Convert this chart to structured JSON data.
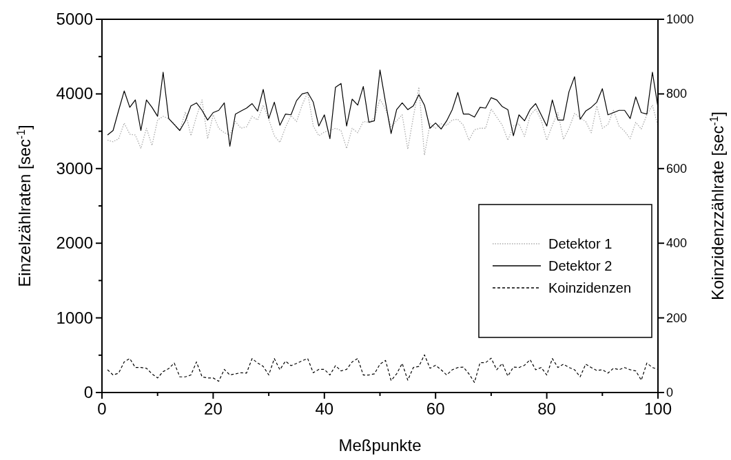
{
  "chart_data": {
    "type": "line",
    "xlabel": "Meßpunkte",
    "ylabel": "Einzelzählraten [sec$^{-1}$]",
    "y2label": "Koinzidenzzählrate [sec$^{-1}$]",
    "x": [
      1,
      2,
      3,
      4,
      5,
      6,
      7,
      8,
      9,
      10,
      11,
      12,
      13,
      14,
      15,
      16,
      17,
      18,
      19,
      20,
      21,
      22,
      23,
      24,
      25,
      26,
      27,
      28,
      29,
      30,
      31,
      32,
      33,
      34,
      35,
      36,
      37,
      38,
      39,
      40,
      41,
      42,
      43,
      44,
      45,
      46,
      47,
      48,
      49,
      50,
      51,
      52,
      53,
      54,
      55,
      56,
      57,
      58,
      59,
      60,
      61,
      62,
      63,
      64,
      65,
      66,
      67,
      68,
      69,
      70,
      71,
      72,
      73,
      74,
      75,
      76,
      77,
      78,
      79,
      80,
      81,
      82,
      83,
      84,
      85,
      86,
      87,
      88,
      89,
      90,
      91,
      92,
      93,
      94,
      95,
      96,
      97,
      98,
      99,
      100
    ],
    "xlim": [
      0,
      100
    ],
    "xticks": [
      0,
      {
        "value": 10,
        "label": null
      },
      20,
      {
        "value": 30,
        "label": null
      },
      40,
      {
        "value": 50,
        "label": null
      },
      60,
      {
        "value": 70,
        "label": null
      },
      80,
      {
        "value": 90,
        "label": null
      },
      100
    ],
    "ylim": [
      0,
      5000
    ],
    "yticks": [
      0,
      {
        "value": 500,
        "label": null
      },
      1000,
      {
        "value": 1500,
        "label": null
      },
      2000,
      {
        "value": 2500,
        "label": null
      },
      3000,
      {
        "value": 3500,
        "label": null
      },
      4000,
      {
        "value": 4500,
        "label": null
      },
      5000
    ],
    "y2lim": [
      0,
      1000
    ],
    "y2ticks": [
      0,
      200,
      400,
      600,
      800,
      1000
    ],
    "grid": false,
    "legend": "right",
    "series": [
      {
        "name": "Detektor 1",
        "color": "#aaaaaa",
        "line_style": "dotted",
        "values": [
          3380,
          3360,
          3400,
          3610,
          3460,
          3450,
          3270,
          3540,
          3310,
          3650,
          3700,
          3670,
          3600,
          3510,
          3760,
          3440,
          3700,
          3920,
          3400,
          3720,
          3540,
          3480,
          3450,
          3630,
          3540,
          3560,
          3700,
          3650,
          3850,
          3660,
          3440,
          3350,
          3550,
          3710,
          3630,
          3850,
          4020,
          3570,
          3440,
          3490,
          3510,
          3540,
          3510,
          3270,
          3540,
          3480,
          3630,
          3620,
          3680,
          3930,
          3800,
          3560,
          3640,
          3720,
          3260,
          3690,
          4090,
          3180,
          3600,
          3540,
          3600,
          3580,
          3650,
          3660,
          3580,
          3380,
          3520,
          3540,
          3540,
          3800,
          3690,
          3580,
          3380,
          3570,
          3600,
          3430,
          3710,
          3800,
          3650,
          3380,
          3580,
          3750,
          3390,
          3540,
          3740,
          3680,
          3630,
          3480,
          3840,
          3540,
          3590,
          3780,
          3570,
          3500,
          3400,
          3620,
          3530,
          3720,
          3850,
          3570
        ]
      },
      {
        "name": "Detektor 2",
        "color": "#000000",
        "line_style": "solid",
        "values": [
          3450,
          3510,
          3780,
          4040,
          3820,
          3920,
          3510,
          3920,
          3820,
          3700,
          4290,
          3670,
          3590,
          3510,
          3640,
          3840,
          3880,
          3780,
          3650,
          3750,
          3780,
          3880,
          3300,
          3730,
          3770,
          3810,
          3870,
          3770,
          4060,
          3670,
          3890,
          3580,
          3730,
          3720,
          3910,
          4000,
          4020,
          3890,
          3570,
          3720,
          3400,
          4090,
          4140,
          3570,
          3930,
          3850,
          4100,
          3620,
          3640,
          4320,
          3890,
          3470,
          3790,
          3880,
          3790,
          3840,
          3990,
          3850,
          3540,
          3610,
          3530,
          3640,
          3790,
          4020,
          3730,
          3730,
          3690,
          3820,
          3810,
          3950,
          3920,
          3830,
          3790,
          3440,
          3720,
          3640,
          3790,
          3870,
          3720,
          3570,
          3920,
          3650,
          3650,
          4030,
          4230,
          3660,
          3770,
          3820,
          3890,
          4070,
          3720,
          3750,
          3780,
          3780,
          3670,
          3960,
          3750,
          3730,
          4290,
          3820
        ]
      },
      {
        "name": "Koinzidenzen",
        "color": "#000000",
        "line_style": "dashed",
        "axis": "y2",
        "values": [
          61,
          47,
          52,
          82,
          91,
          67,
          67,
          65,
          50,
          39,
          56,
          64,
          79,
          42,
          42,
          47,
          82,
          42,
          39,
          39,
          30,
          62,
          47,
          50,
          53,
          52,
          91,
          79,
          70,
          47,
          91,
          61,
          84,
          72,
          78,
          85,
          91,
          53,
          62,
          62,
          47,
          72,
          58,
          62,
          82,
          91,
          47,
          47,
          50,
          76,
          86,
          32,
          50,
          78,
          33,
          67,
          70,
          101,
          65,
          73,
          61,
          47,
          61,
          67,
          68,
          50,
          27,
          80,
          80,
          92,
          61,
          78,
          44,
          68,
          67,
          73,
          88,
          61,
          67,
          47,
          91,
          67,
          76,
          67,
          61,
          42,
          76,
          67,
          59,
          61,
          52,
          65,
          61,
          67,
          61,
          58,
          33,
          79,
          67,
          62
        ]
      }
    ]
  }
}
